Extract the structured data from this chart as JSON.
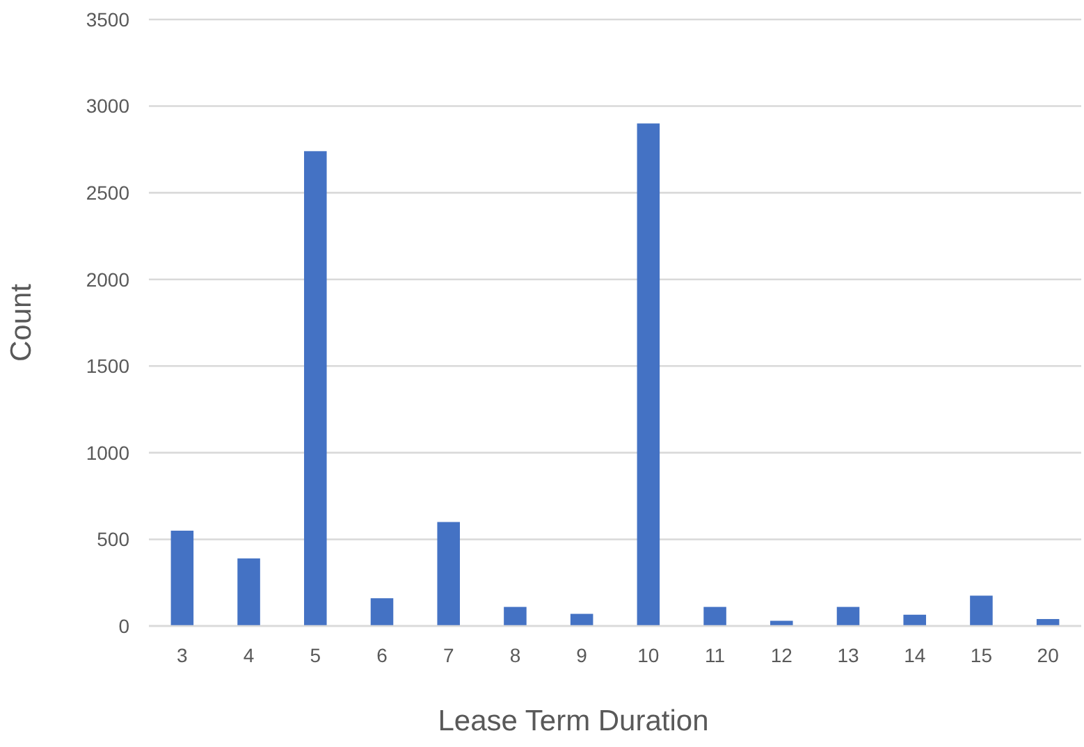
{
  "chart_data": {
    "type": "bar",
    "xlabel": "Lease Term Duration",
    "ylabel": "Count",
    "categories": [
      "3",
      "4",
      "5",
      "6",
      "7",
      "8",
      "9",
      "10",
      "11",
      "12",
      "13",
      "14",
      "15",
      "20"
    ],
    "values": [
      550,
      390,
      2740,
      160,
      600,
      110,
      70,
      2900,
      110,
      30,
      110,
      65,
      175,
      40
    ],
    "color": "#4472c4",
    "ylim": [
      0,
      3500
    ],
    "yticks": [
      0,
      500,
      1000,
      1500,
      2000,
      2500,
      3000,
      3500
    ],
    "grid": "y"
  }
}
